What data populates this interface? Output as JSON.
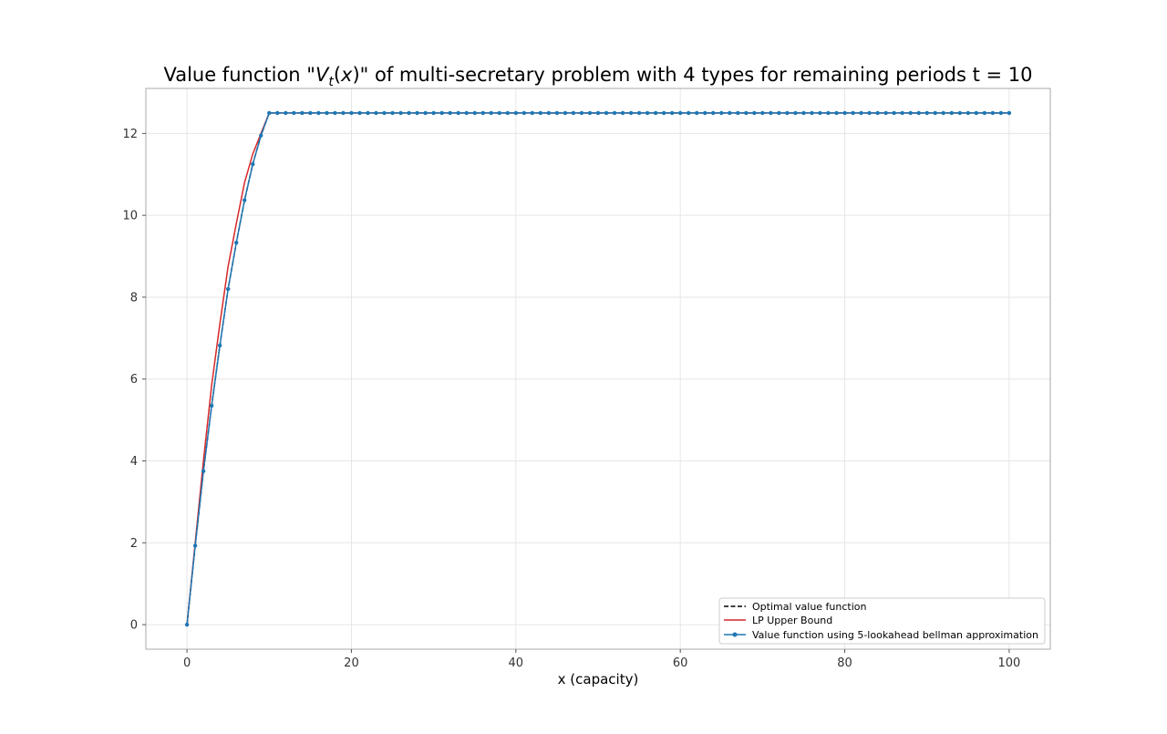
{
  "chart_data": {
    "type": "line",
    "title_prefix": "Value function \"",
    "title_math_v": "V",
    "title_math_sub": "t",
    "title_math_arg_open": "(",
    "title_math_arg_var": "x",
    "title_math_arg_close": ")",
    "title_suffix": "\" of multi-secretary problem with 4 types for remaining periods t = 10",
    "xlabel": "x (capacity)",
    "ylabel": "",
    "xlim": [
      -5,
      105
    ],
    "ylim": [
      -0.6,
      13.1
    ],
    "xticks": [
      0,
      20,
      40,
      60,
      80,
      100
    ],
    "yticks": [
      0,
      2,
      4,
      6,
      8,
      10,
      12
    ],
    "grid": true,
    "legend_position": "lower-right",
    "series": [
      {
        "name": "Optimal value function",
        "style": "dashed",
        "color": "#000000",
        "x": [
          0,
          1,
          2,
          3,
          4,
          5,
          6,
          7,
          8,
          9,
          10,
          100
        ],
        "y": [
          0,
          1.93,
          3.75,
          5.35,
          6.82,
          8.2,
          9.33,
          10.37,
          11.25,
          11.95,
          12.5,
          12.5
        ]
      },
      {
        "name": "LP Upper Bound",
        "style": "solid",
        "color": "#d62728",
        "x": [
          0,
          1,
          2,
          3,
          4,
          5,
          6,
          7,
          8,
          9,
          10,
          100
        ],
        "y": [
          0,
          2.0,
          4.0,
          5.85,
          7.35,
          8.75,
          9.8,
          10.8,
          11.5,
          12.0,
          12.5,
          12.5
        ]
      },
      {
        "name": "Value function using 5-lookahead bellman approximation",
        "style": "solid-markers",
        "color": "#1f77b4",
        "x_start": 0,
        "x_end": 100,
        "y_head": [
          0,
          1.93,
          3.75,
          5.35,
          6.82,
          8.2,
          9.33,
          10.37,
          11.25,
          11.95,
          12.5
        ],
        "y_plateau": 12.5
      }
    ]
  }
}
